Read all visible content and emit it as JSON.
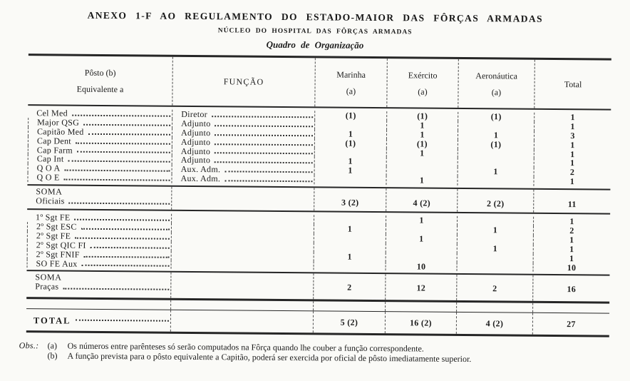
{
  "title": "ANEXO 1-F AO REGULAMENTO DO ESTADO-MAIOR DAS FÔRÇAS ARMADAS",
  "subtitle": "NÚCLEO DO HOSPITAL DAS FÔRÇAS ARMADAS",
  "caption": "Quadro de Organização",
  "table": {
    "columns": [
      {
        "label1": "Pôsto  (b)",
        "label2": "Equivalente a"
      },
      {
        "label": "FUNÇÃO"
      },
      {
        "label": "Marinha",
        "note": "(a)"
      },
      {
        "label": "Exército",
        "note": "(a)"
      },
      {
        "label": "Aeronáutica",
        "note": "(a)"
      },
      {
        "label": "Total"
      }
    ],
    "officer_rows": [
      {
        "posto": "Cel Med",
        "funcao": "Diretor",
        "marinha": "(1)",
        "exercito": "(1)",
        "aeronautica": "(1)",
        "total": "1"
      },
      {
        "posto": "Major QSG",
        "funcao": "Adjunto",
        "marinha": "",
        "exercito": "1",
        "aeronautica": "",
        "total": "1"
      },
      {
        "posto": "Capitão Med",
        "funcao": "Adjunto",
        "marinha": "1",
        "exercito": "1",
        "aeronautica": "1",
        "total": "3"
      },
      {
        "posto": "Cap Dent",
        "funcao": "Adjunto",
        "marinha": "(1)",
        "exercito": "(1)",
        "aeronautica": "(1)",
        "total": "1"
      },
      {
        "posto": "Cap Farm",
        "funcao": "Adjunto",
        "marinha": "",
        "exercito": "1",
        "aeronautica": "",
        "total": "1"
      },
      {
        "posto": "Cap Int",
        "funcao": "Adjunto",
        "marinha": "1",
        "exercito": "",
        "aeronautica": "",
        "total": "1"
      },
      {
        "posto": "Q O A",
        "funcao": "Aux. Adm.",
        "marinha": "1",
        "exercito": "",
        "aeronautica": "1",
        "total": "2"
      },
      {
        "posto": "Q O E",
        "funcao": "Aux. Adm.",
        "marinha": "",
        "exercito": "1",
        "aeronautica": "",
        "total": "1"
      }
    ],
    "soma_oficiais": {
      "label1": "SOMA",
      "label2": "Oficiais",
      "marinha": "3 (2)",
      "exercito": "4 (2)",
      "aeronautica": "2 (2)",
      "total": "11"
    },
    "praca_rows": [
      {
        "posto": "1º Sgt FE",
        "marinha": "",
        "exercito": "1",
        "aeronautica": "",
        "total": "1"
      },
      {
        "posto": "2º Sgt ESC",
        "marinha": "1",
        "exercito": "",
        "aeronautica": "1",
        "total": "2"
      },
      {
        "posto": "2º Sgt FE",
        "marinha": "",
        "exercito": "1",
        "aeronautica": "",
        "total": "1"
      },
      {
        "posto": "2º Sgt QIC FI",
        "marinha": "",
        "exercito": "",
        "aeronautica": "1",
        "total": "1"
      },
      {
        "posto": "2º Sgt FNIF",
        "marinha": "1",
        "exercito": "",
        "aeronautica": "",
        "total": "1"
      },
      {
        "posto": "SO FE Aux",
        "marinha": "",
        "exercito": "10",
        "aeronautica": "",
        "total": "10"
      }
    ],
    "soma_pracas": {
      "label1": "SOMA",
      "label2": "Praças",
      "marinha": "2",
      "exercito": "12",
      "aeronautica": "2",
      "total": "16"
    },
    "total_row": {
      "label": "TOTAL",
      "marinha": "5 (2)",
      "exercito": "16 (2)",
      "aeronautica": "4 (2)",
      "total": "27"
    }
  },
  "footnotes": {
    "prefix": "Obs.:",
    "items": [
      {
        "tag": "(a)",
        "text": "Os números entre parênteses só serão computados na Fôrça quando lhe couber a função correspondente."
      },
      {
        "tag": "(b)",
        "text": "A função prevista para o pôsto equivalente a Capitão, poderá ser exercida por oficial de pôsto imediatamente superior."
      }
    ]
  }
}
